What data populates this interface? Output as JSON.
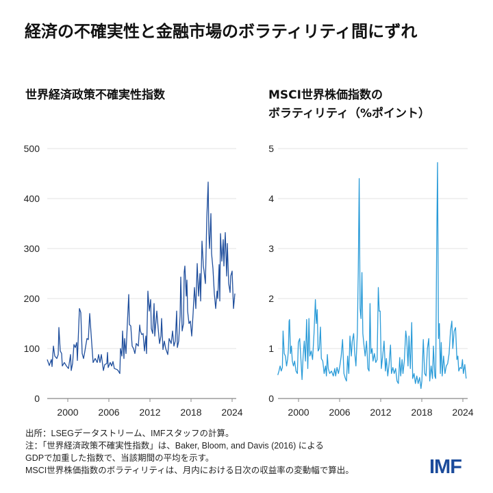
{
  "title": "経済の不確実性と金融市場のボラティリティ間にずれ",
  "colors": {
    "left_line": "#1f4e9c",
    "right_line": "#2a9bd8",
    "grid": "#e3e3e3",
    "axis": "#888888",
    "logo": "#1b4b9b"
  },
  "footer": {
    "notes": [
      "出所：LSEGデータストリーム、IMFスタッフの計算。",
      "注：「世界経済政策不確実性指数」は、Baker, Bloom, and Davis (2016) による",
      "GDPで加重した指数で、当該期間の平均を示す。",
      "MSCI世界株価指数のボラティリティは、月内における日次の収益率の変動幅で算出。"
    ],
    "logo": "IMF"
  },
  "chart_data": [
    {
      "type": "line",
      "title": "世界経済政策不確実性指数",
      "title_lines": [
        "世界経済政策不確実性指数"
      ],
      "xlim": [
        1997.0,
        2024.4
      ],
      "ylim": [
        0,
        500
      ],
      "xticks": [
        2000,
        2006,
        2012,
        2018,
        2024
      ],
      "yticks": [
        0,
        100,
        200,
        300,
        400,
        500
      ],
      "grid": true,
      "x": [
        1997.0,
        1997.3,
        1997.6,
        1997.7,
        1997.9,
        1998.1,
        1998.4,
        1998.6,
        1998.7,
        1998.9,
        1999.1,
        1999.2,
        1999.5,
        1999.8,
        2000.1,
        2000.4,
        2000.5,
        2000.7,
        2000.9,
        2001.1,
        2001.3,
        2001.4,
        2001.7,
        2001.9,
        2002.1,
        2002.3,
        2002.5,
        2002.8,
        2003.0,
        2003.2,
        2003.5,
        2003.7,
        2004.0,
        2004.3,
        2004.5,
        2004.7,
        2004.9,
        2005.2,
        2005.4,
        2005.7,
        2005.8,
        2005.9,
        2006.2,
        2006.4,
        2006.6,
        2006.8,
        2007.2,
        2007.4,
        2007.6,
        2007.7,
        2007.9,
        2008.0,
        2008.2,
        2008.3,
        2008.5,
        2008.7,
        2008.9,
        2009.0,
        2009.2,
        2009.4,
        2009.6,
        2009.8,
        2010.0,
        2010.3,
        2010.5,
        2010.6,
        2010.8,
        2011.0,
        2011.2,
        2011.4,
        2011.5,
        2011.7,
        2011.9,
        2012.1,
        2012.2,
        2012.4,
        2012.6,
        2012.7,
        2013.0,
        2013.2,
        2013.4,
        2013.6,
        2013.7,
        2013.9,
        2014.1,
        2014.3,
        2014.6,
        2014.8,
        2015.1,
        2015.3,
        2015.5,
        2015.7,
        2015.9,
        2016.0,
        2016.2,
        2016.4,
        2016.5,
        2016.7,
        2016.9,
        2017.0,
        2017.1,
        2017.3,
        2017.4,
        2017.5,
        2017.7,
        2017.9,
        2018.1,
        2018.3,
        2018.5,
        2018.7,
        2018.9,
        2019.1,
        2019.3,
        2019.4,
        2019.6,
        2019.8,
        2019.9,
        2020.1,
        2020.3,
        2020.5,
        2020.6,
        2020.7,
        2020.9,
        2021.0,
        2021.2,
        2021.4,
        2021.6,
        2021.8,
        2021.9,
        2022.1,
        2022.2,
        2022.3,
        2022.5,
        2022.7,
        2022.8,
        2023.0,
        2023.2,
        2023.3,
        2023.5,
        2023.7,
        2023.8,
        2024.0,
        2024.2,
        2024.4
      ],
      "y": [
        78,
        66,
        78,
        64,
        105,
        85,
        80,
        88,
        142,
        95,
        90,
        65,
        72,
        65,
        60,
        88,
        56,
        70,
        108,
        102,
        112,
        76,
        180,
        172,
        90,
        80,
        95,
        120,
        118,
        170,
        110,
        72,
        80,
        72,
        88,
        72,
        88,
        56,
        68,
        70,
        92,
        62,
        72,
        65,
        74,
        60,
        58,
        55,
        50,
        100,
        85,
        135,
        80,
        120,
        90,
        150,
        208,
        148,
        145,
        105,
        100,
        90,
        110,
        105,
        147,
        135,
        128,
        130,
        95,
        125,
        90,
        215,
        175,
        198,
        140,
        130,
        190,
        125,
        175,
        140,
        110,
        125,
        160,
        98,
        115,
        100,
        88,
        120,
        110,
        135,
        105,
        115,
        175,
        102,
        115,
        165,
        243,
        135,
        150,
        253,
        265,
        205,
        237,
        175,
        150,
        155,
        125,
        170,
        222,
        180,
        270,
        205,
        250,
        195,
        315,
        265,
        255,
        230,
        360,
        433,
        330,
        300,
        370,
        290,
        260,
        210,
        180,
        215,
        200,
        268,
        195,
        330,
        275,
        318,
        265,
        332,
        245,
        310,
        230,
        212,
        245,
        255,
        180,
        210
      ]
    },
    {
      "type": "line",
      "title": "MSCI世界株価指数のボラティリティ（%ポイント）",
      "title_lines": [
        "MSCI世界株価指数の",
        "ボラティリティ（%ポイント）"
      ],
      "xlim": [
        1997.0,
        2024.5
      ],
      "ylim": [
        0,
        5
      ],
      "xticks": [
        2000,
        2006,
        2012,
        2018,
        2024
      ],
      "yticks": [
        0,
        1,
        2,
        3,
        4,
        5
      ],
      "grid": true,
      "x": [
        1996.97,
        1997.14,
        1997.31,
        1997.47,
        1997.64,
        1997.74,
        1997.91,
        1998.08,
        1998.25,
        1998.42,
        1998.52,
        1998.62,
        1998.69,
        1998.82,
        1998.96,
        1999.09,
        1999.26,
        1999.43,
        1999.63,
        1999.83,
        1999.97,
        2000.17,
        2000.34,
        2000.51,
        2000.67,
        2000.84,
        2001.01,
        2001.18,
        2001.35,
        2001.52,
        2001.65,
        2001.85,
        2002.05,
        2002.26,
        2002.46,
        2002.59,
        2002.73,
        2002.86,
        2003.03,
        2003.2,
        2003.33,
        2003.54,
        2003.74,
        2003.94,
        2004.07,
        2004.21,
        2004.34,
        2004.55,
        2004.81,
        2005.08,
        2005.29,
        2005.42,
        2005.62,
        2005.83,
        2006.03,
        2006.23,
        2006.43,
        2006.63,
        2006.84,
        2007.0,
        2007.17,
        2007.34,
        2007.51,
        2007.71,
        2007.85,
        2008.05,
        2008.18,
        2008.38,
        2008.59,
        2008.72,
        2008.86,
        2008.99,
        2009.12,
        2009.26,
        2009.39,
        2009.53,
        2009.73,
        2009.93,
        2010.13,
        2010.3,
        2010.44,
        2010.57,
        2010.74,
        2010.88,
        2011.08,
        2011.28,
        2011.48,
        2011.65,
        2011.78,
        2011.92,
        2012.09,
        2012.29,
        2012.49,
        2012.69,
        2012.83,
        2013.03,
        2013.23,
        2013.43,
        2013.57,
        2013.77,
        2013.97,
        2014.18,
        2014.38,
        2014.58,
        2014.78,
        2014.92,
        2015.12,
        2015.25,
        2015.45,
        2015.66,
        2015.79,
        2015.99,
        2016.13,
        2016.33,
        2016.53,
        2016.67,
        2016.87,
        2017.07,
        2017.27,
        2017.47,
        2017.68,
        2017.88,
        2018.01,
        2018.22,
        2018.42,
        2018.62,
        2018.82,
        2019.02,
        2019.16,
        2019.36,
        2019.56,
        2019.7,
        2019.9,
        2020.03,
        2020.17,
        2020.3,
        2020.44,
        2020.57,
        2020.71,
        2020.84,
        2020.98,
        2021.18,
        2021.38,
        2021.58,
        2021.78,
        2021.99,
        2022.19,
        2022.39,
        2022.53,
        2022.73,
        2022.93,
        2023.13,
        2023.27,
        2023.4,
        2023.6,
        2023.8,
        2023.94,
        2024.07,
        2024.28,
        2024.48
      ],
      "y": [
        0.47,
        0.55,
        0.65,
        0.55,
        0.62,
        1.35,
        0.9,
        0.85,
        0.65,
        0.8,
        0.98,
        1.55,
        1.58,
        0.9,
        1.05,
        0.75,
        0.65,
        0.75,
        0.55,
        0.5,
        1.12,
        1.2,
        0.8,
        0.38,
        0.85,
        1.15,
        0.75,
        1.58,
        0.6,
        1.6,
        0.85,
        0.95,
        0.78,
        1.3,
        1.98,
        1.5,
        1.78,
        0.95,
        1.0,
        1.43,
        0.8,
        0.75,
        0.5,
        0.65,
        0.45,
        0.88,
        0.6,
        0.5,
        0.55,
        0.45,
        0.6,
        0.45,
        0.62,
        0.5,
        0.65,
        0.85,
        1.18,
        0.5,
        0.4,
        0.35,
        0.85,
        0.5,
        1.25,
        0.85,
        1.15,
        1.3,
        0.95,
        0.65,
        1.3,
        2.5,
        4.4,
        1.8,
        1.6,
        2.52,
        1.3,
        1.1,
        0.85,
        1.15,
        0.6,
        0.55,
        1.9,
        0.9,
        1.0,
        0.75,
        0.9,
        0.72,
        0.78,
        2.22,
        1.75,
        1.75,
        0.6,
        0.85,
        1.15,
        0.55,
        0.8,
        0.45,
        0.7,
        1.07,
        0.5,
        0.62,
        0.5,
        0.6,
        0.35,
        0.3,
        0.82,
        0.45,
        0.78,
        0.5,
        0.75,
        1.35,
        1.2,
        0.65,
        1.25,
        0.6,
        1.52,
        0.4,
        0.5,
        0.3,
        0.45,
        0.3,
        0.42,
        0.2,
        0.35,
        1.18,
        0.5,
        0.45,
        1.0,
        1.2,
        0.35,
        0.65,
        0.4,
        1.05,
        0.45,
        0.4,
        3.0,
        4.72,
        1.2,
        1.5,
        0.5,
        1.12,
        0.45,
        0.85,
        0.5,
        0.65,
        0.7,
        0.9,
        1.35,
        1.55,
        1.0,
        1.35,
        1.42,
        0.78,
        0.85,
        0.55,
        0.62,
        0.6,
        0.78,
        0.5,
        0.68,
        0.4
      ]
    }
  ]
}
